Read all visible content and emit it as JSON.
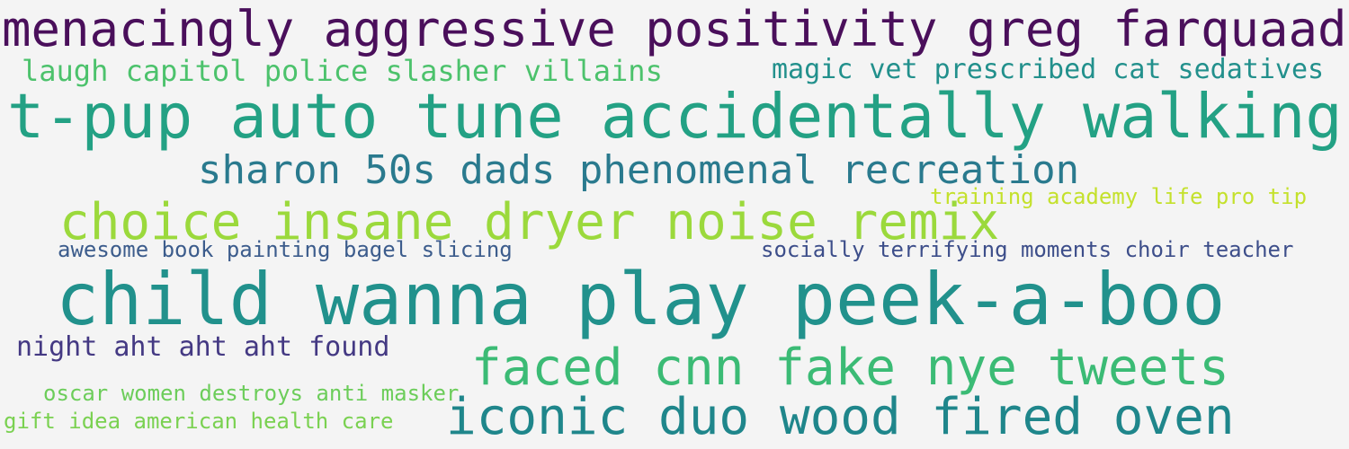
{
  "word_cloud": {
    "background": "#f4f4f4",
    "phrases": [
      {
        "text": "menacingly aggressive positivity greg farquaad",
        "color": "#4a0f5b"
      },
      {
        "text": "laugh capitol police slasher villains",
        "color": "#4cc26c"
      },
      {
        "text": "magic vet prescribed cat sedatives",
        "color": "#22908c"
      },
      {
        "text": "t-pup auto tune accidentally walking",
        "color": "#23a184"
      },
      {
        "text": "sharon 50s dads phenomenal recreation",
        "color": "#2a7a8e"
      },
      {
        "text": "training academy life pro tip",
        "color": "#c4e12c"
      },
      {
        "text": "choice insane dryer noise remix",
        "color": "#9bd93c"
      },
      {
        "text": "awesome book painting bagel slicing",
        "color": "#3c5c8c"
      },
      {
        "text": "socially terrifying moments choir teacher",
        "color": "#3d4e8a"
      },
      {
        "text": "child wanna play peek-a-boo",
        "color": "#21918c"
      },
      {
        "text": "night aht aht aht found",
        "color": "#443983"
      },
      {
        "text": "faced cnn fake nye tweets",
        "color": "#3bbb75"
      },
      {
        "text": "oscar women destroys anti masker",
        "color": "#6ccd5a"
      },
      {
        "text": "gift idea american health care",
        "color": "#7ad151"
      },
      {
        "text": "iconic duo wood fired oven",
        "color": "#1f868b"
      }
    ]
  }
}
